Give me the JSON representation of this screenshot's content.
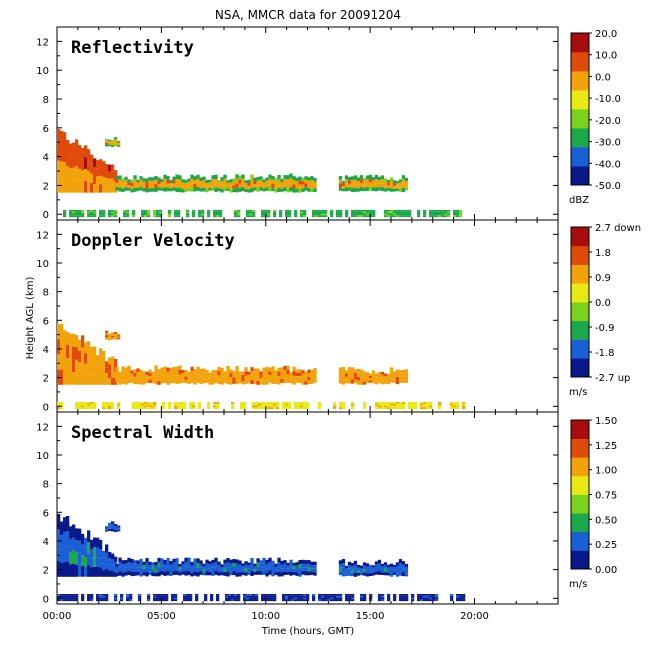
{
  "chart_data": {
    "type": "heatmap",
    "title": "NSA, MMCR data for 20091204",
    "xlabel": "Time (hours, GMT)",
    "ylabel": "Height AGL (km)",
    "xlim": [
      0,
      24
    ],
    "ylim": [
      -0.4,
      13
    ],
    "x_ticks": [
      "00:00",
      "05:00",
      "10:00",
      "15:00",
      "20:00"
    ],
    "x_tick_values": [
      0,
      5,
      10,
      15,
      20
    ],
    "y_ticks": [
      "0",
      "2",
      "4",
      "6",
      "8",
      "10",
      "12"
    ],
    "y_tick_values": [
      0,
      2,
      4,
      6,
      8,
      10,
      12
    ],
    "cloud_features": [
      {
        "name": "upper_layer_start",
        "t_range": [
          0.0,
          2.8
        ],
        "base_km": 1.5,
        "top_km": 5.8
      },
      {
        "name": "fragment",
        "t_range": [
          2.3,
          3.0
        ],
        "base_km": 4.6,
        "top_km": 5.6
      },
      {
        "name": "main_layer",
        "t_range": [
          2.8,
          12.4
        ],
        "base_km": 1.5,
        "top_km": 3.0
      },
      {
        "name": "layer_segment",
        "t_range": [
          13.5,
          16.8
        ],
        "base_km": 1.5,
        "top_km": 2.9
      },
      {
        "name": "surface_echo",
        "t_range": [
          0.0,
          19.5
        ],
        "base_km": -0.2,
        "top_km": 0.3
      }
    ],
    "panels": [
      {
        "title": "Reflectivity",
        "colorbar_ticks": [
          "20.0",
          "10.0",
          "0.0",
          "-10.0",
          "-20.0",
          "-30.0",
          "-40.0",
          "-50.0"
        ],
        "colorbar_unit": "dBZ",
        "colors": [
          "#0b1a8a",
          "#1a5fd6",
          "#1ba84a",
          "#7ad21f",
          "#e8e815",
          "#f2a30c",
          "#e04a0b",
          "#a80d0d"
        ]
      },
      {
        "title": "Doppler Velocity",
        "colorbar_ticks": [
          "2.7 down",
          "1.8",
          "0.9",
          "0.0",
          "-0.9",
          "-1.8",
          "-2.7 up"
        ],
        "colorbar_unit": "m/s",
        "colors": [
          "#0b1a8a",
          "#1a5fd6",
          "#1ba84a",
          "#7ad21f",
          "#e8e815",
          "#f2a30c",
          "#e04a0b",
          "#a80d0d"
        ]
      },
      {
        "title": "Spectral Width",
        "colorbar_ticks": [
          "1.50",
          "1.25",
          "1.00",
          "0.75",
          "0.50",
          "0.25",
          "0.00"
        ],
        "colorbar_unit": "m/s",
        "colors": [
          "#0b1a8a",
          "#1a5fd6",
          "#1ba84a",
          "#7ad21f",
          "#e8e815",
          "#f2a30c",
          "#e04a0b",
          "#a80d0d"
        ]
      }
    ]
  }
}
